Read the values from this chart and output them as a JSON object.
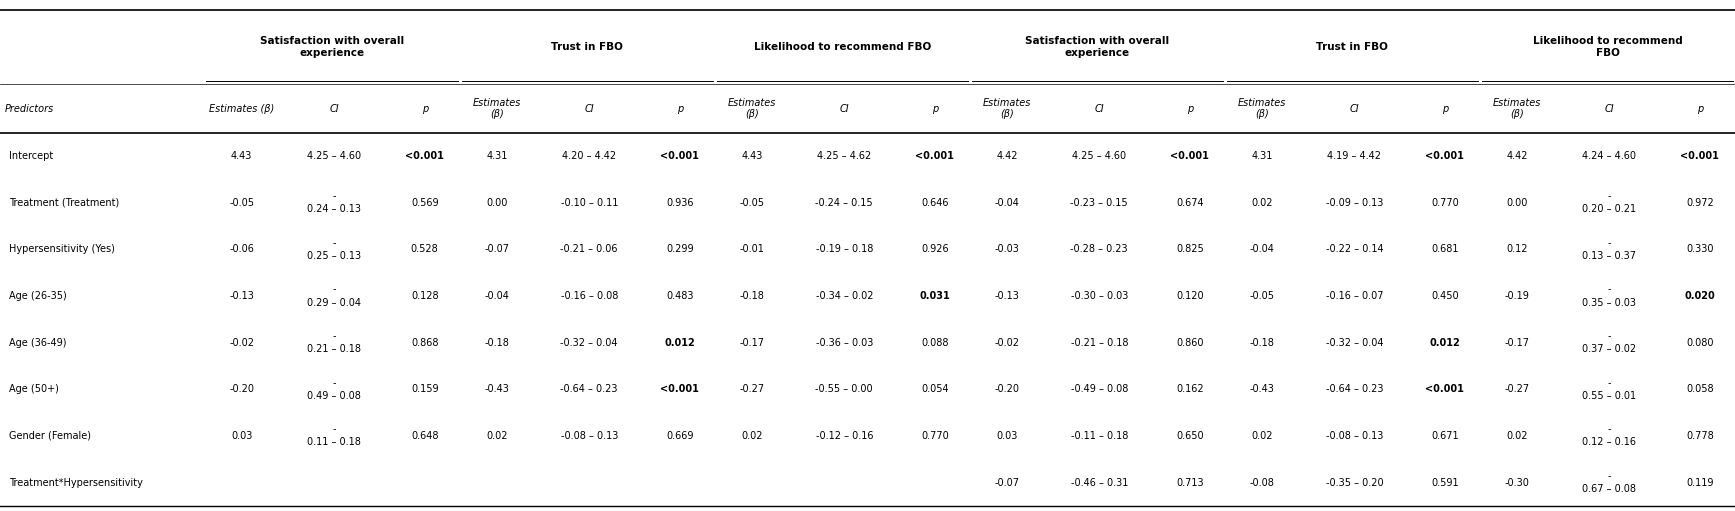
{
  "group_headers": [
    {
      "label": "Satisfaction with overall\nexperience",
      "cols": [
        1,
        2,
        3
      ]
    },
    {
      "label": "Trust in FBO",
      "cols": [
        4,
        5,
        6
      ]
    },
    {
      "label": "Likelihood to recommend FBO",
      "cols": [
        7,
        8,
        9
      ]
    },
    {
      "label": "Satisfaction with overall\nexperience",
      "cols": [
        10,
        11,
        12
      ]
    },
    {
      "label": "Trust in FBO",
      "cols": [
        13,
        14,
        15
      ]
    },
    {
      "label": "Likelihood to recommend\nFBO",
      "cols": [
        16,
        17,
        18
      ]
    }
  ],
  "col_headers": [
    "Predictors",
    "Estimates (β)",
    "CI",
    "p",
    "Estimates\n(β)",
    "CI",
    "p",
    "Estimates\n(β)",
    "CI",
    "p",
    "Estimates\n(β)",
    "CI",
    "p",
    "Estimates\n(β)",
    "CI",
    "p",
    "Estimates\n(β)",
    "CI",
    "p"
  ],
  "rows": [
    {
      "predictor": "Intercept",
      "vals": [
        "4.43",
        "4.25 – 4.60",
        "<0.001",
        "4.31",
        "4.20 – 4.42",
        "<0.001",
        "4.43",
        "4.25 – 4.62",
        "<0.001",
        "4.42",
        "4.25 – 4.60",
        "<0.001",
        "4.31",
        "4.19 – 4.42",
        "<0.001",
        "4.42",
        "4.24 – 4.60",
        "<0.001"
      ],
      "bold": [
        false,
        false,
        true,
        false,
        false,
        true,
        false,
        false,
        true,
        false,
        false,
        true,
        false,
        false,
        true,
        false,
        false,
        true
      ]
    },
    {
      "predictor": "Treatment (Treatment)",
      "vals": [
        "-0.05",
        "-\n0.24 – 0.13",
        "0.569",
        "0.00",
        "-0.10 – 0.11",
        "0.936",
        "-0.05",
        "-0.24 – 0.15",
        "0.646",
        "-0.04",
        "-0.23 – 0.15",
        "0.674",
        "0.02",
        "-0.09 – 0.13",
        "0.770",
        "0.00",
        "-\n0.20 – 0.21",
        "0.972"
      ],
      "bold": [
        false,
        false,
        false,
        false,
        false,
        false,
        false,
        false,
        false,
        false,
        false,
        false,
        false,
        false,
        false,
        false,
        false,
        false
      ]
    },
    {
      "predictor": "Hypersensitivity (Yes)",
      "vals": [
        "-0.06",
        "-\n0.25 – 0.13",
        "0.528",
        "-0.07",
        "-0.21 – 0.06",
        "0.299",
        "-0.01",
        "-0.19 – 0.18",
        "0.926",
        "-0.03",
        "-0.28 – 0.23",
        "0.825",
        "-0.04",
        "-0.22 – 0.14",
        "0.681",
        "0.12",
        "-\n0.13 – 0.37",
        "0.330"
      ],
      "bold": [
        false,
        false,
        false,
        false,
        false,
        false,
        false,
        false,
        false,
        false,
        false,
        false,
        false,
        false,
        false,
        false,
        false,
        false
      ]
    },
    {
      "predictor": "Age (26-35)",
      "vals": [
        "-0.13",
        "-\n0.29 – 0.04",
        "0.128",
        "-0.04",
        "-0.16 – 0.08",
        "0.483",
        "-0.18",
        "-0.34 – 0.02",
        "0.031",
        "-0.13",
        "-0.30 – 0.03",
        "0.120",
        "-0.05",
        "-0.16 – 0.07",
        "0.450",
        "-0.19",
        "-\n0.35 – 0.03",
        "0.020"
      ],
      "bold": [
        false,
        false,
        false,
        false,
        false,
        false,
        false,
        false,
        true,
        false,
        false,
        false,
        false,
        false,
        false,
        false,
        false,
        true
      ]
    },
    {
      "predictor": "Age (36-49)",
      "vals": [
        "-0.02",
        "-\n0.21 – 0.18",
        "0.868",
        "-0.18",
        "-0.32 – 0.04",
        "0.012",
        "-0.17",
        "-0.36 – 0.03",
        "0.088",
        "-0.02",
        "-0.21 – 0.18",
        "0.860",
        "-0.18",
        "-0.32 – 0.04",
        "0.012",
        "-0.17",
        "-\n0.37 – 0.02",
        "0.080"
      ],
      "bold": [
        false,
        false,
        false,
        false,
        false,
        true,
        false,
        false,
        false,
        false,
        false,
        false,
        false,
        false,
        true,
        false,
        false,
        false
      ]
    },
    {
      "predictor": "Age (50+)",
      "vals": [
        "-0.20",
        "-\n0.49 – 0.08",
        "0.159",
        "-0.43",
        "-0.64 – 0.23",
        "<0.001",
        "-0.27",
        "-0.55 – 0.00",
        "0.054",
        "-0.20",
        "-0.49 – 0.08",
        "0.162",
        "-0.43",
        "-0.64 – 0.23",
        "<0.001",
        "-0.27",
        "-\n0.55 – 0.01",
        "0.058"
      ],
      "bold": [
        false,
        false,
        false,
        false,
        false,
        true,
        false,
        false,
        false,
        false,
        false,
        false,
        false,
        false,
        true,
        false,
        false,
        false
      ]
    },
    {
      "predictor": "Gender (Female)",
      "vals": [
        "0.03",
        "-\n0.11 – 0.18",
        "0.648",
        "0.02",
        "-0.08 – 0.13",
        "0.669",
        "0.02",
        "-0.12 – 0.16",
        "0.770",
        "0.03",
        "-0.11 – 0.18",
        "0.650",
        "0.02",
        "-0.08 – 0.13",
        "0.671",
        "0.02",
        "-\n0.12 – 0.16",
        "0.778"
      ],
      "bold": [
        false,
        false,
        false,
        false,
        false,
        false,
        false,
        false,
        false,
        false,
        false,
        false,
        false,
        false,
        false,
        false,
        false,
        false
      ]
    },
    {
      "predictor": "Treatment*Hypersensitivity",
      "vals": [
        "",
        "",
        "",
        "",
        "",
        "",
        "",
        "",
        "",
        "-0.07",
        "-0.46 – 0.31",
        "0.713",
        "-0.08",
        "-0.35 – 0.20",
        "0.591",
        "-0.30",
        "-\n0.67 – 0.08",
        "0.119"
      ],
      "bold": [
        false,
        false,
        false,
        false,
        false,
        false,
        false,
        false,
        false,
        false,
        false,
        false,
        false,
        false,
        false,
        false,
        false,
        false
      ]
    }
  ],
  "background_color": "#ffffff",
  "text_color": "#000000"
}
